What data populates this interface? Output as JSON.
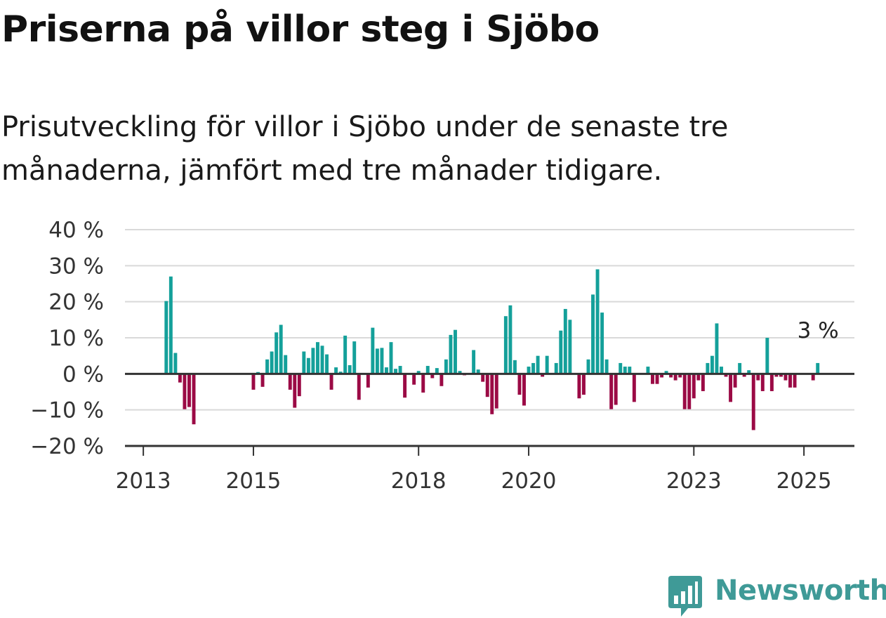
{
  "title": "Priserna på villor steg i Sjöbo",
  "subtitle": "Prisutveckling för villor i Sjöbo under de senaste tre månaderna, jämfört med tre månader tidigare.",
  "brand": {
    "name": "Newsworthy",
    "color": "#3f9a97",
    "logo_icon": "bar-chart-badge-icon"
  },
  "colors": {
    "positive": "#14a09a",
    "negative": "#9b0a45",
    "grid": "#d9d9d9",
    "axis": "#333333"
  },
  "chart_data": {
    "type": "bar",
    "unit": "%",
    "ylim": [
      -20,
      40
    ],
    "yticks": [
      40,
      30,
      20,
      10,
      0,
      -10,
      -20
    ],
    "ytick_labels": [
      "40 %",
      "30 %",
      "20 %",
      "10 %",
      "0 %",
      "−10 %",
      "−20 %"
    ],
    "xticks": [
      2013,
      2015,
      2018,
      2020,
      2023,
      2025
    ],
    "xtick_labels": [
      "2013",
      "2015",
      "2018",
      "2020",
      "2023",
      "2025"
    ],
    "x_start": "2012-09",
    "x_end": "2025-12",
    "grid": true,
    "annotation": {
      "label": "3 %",
      "x": "2025-04",
      "y": 3
    },
    "series": [
      {
        "values": [
          {
            "x": "2013-06",
            "y": 20.2
          },
          {
            "x": "2013-07",
            "y": 27.0
          },
          {
            "x": "2013-08",
            "y": 5.8
          },
          {
            "x": "2013-09",
            "y": -2.4
          },
          {
            "x": "2013-10",
            "y": -9.8
          },
          {
            "x": "2013-11",
            "y": -9.2
          },
          {
            "x": "2013-12",
            "y": -14.0
          },
          {
            "x": "2015-01",
            "y": -4.4
          },
          {
            "x": "2015-02",
            "y": 0.5
          },
          {
            "x": "2015-03",
            "y": -3.6
          },
          {
            "x": "2015-04",
            "y": 4.0
          },
          {
            "x": "2015-05",
            "y": 6.2
          },
          {
            "x": "2015-06",
            "y": 11.5
          },
          {
            "x": "2015-07",
            "y": 13.6
          },
          {
            "x": "2015-08",
            "y": 5.2
          },
          {
            "x": "2015-09",
            "y": -4.4
          },
          {
            "x": "2015-10",
            "y": -9.4
          },
          {
            "x": "2015-11",
            "y": -6.2
          },
          {
            "x": "2015-12",
            "y": 6.2
          },
          {
            "x": "2016-01",
            "y": 4.4
          },
          {
            "x": "2016-02",
            "y": 7.2
          },
          {
            "x": "2016-03",
            "y": 8.8
          },
          {
            "x": "2016-04",
            "y": 7.8
          },
          {
            "x": "2016-05",
            "y": 5.4
          },
          {
            "x": "2016-06",
            "y": -4.4
          },
          {
            "x": "2016-07",
            "y": 1.8
          },
          {
            "x": "2016-08",
            "y": 0.6
          },
          {
            "x": "2016-09",
            "y": 10.6
          },
          {
            "x": "2016-10",
            "y": 2.4
          },
          {
            "x": "2016-11",
            "y": 9.0
          },
          {
            "x": "2016-12",
            "y": -7.2
          },
          {
            "x": "2017-02",
            "y": -3.8
          },
          {
            "x": "2017-03",
            "y": 12.8
          },
          {
            "x": "2017-04",
            "y": 7.0
          },
          {
            "x": "2017-05",
            "y": 7.2
          },
          {
            "x": "2017-06",
            "y": 1.8
          },
          {
            "x": "2017-07",
            "y": 8.8
          },
          {
            "x": "2017-08",
            "y": 1.4
          },
          {
            "x": "2017-09",
            "y": 2.2
          },
          {
            "x": "2017-10",
            "y": -6.6
          },
          {
            "x": "2017-12",
            "y": -3.0
          },
          {
            "x": "2018-01",
            "y": 0.8
          },
          {
            "x": "2018-02",
            "y": -5.2
          },
          {
            "x": "2018-03",
            "y": 2.2
          },
          {
            "x": "2018-04",
            "y": -1.2
          },
          {
            "x": "2018-05",
            "y": 1.6
          },
          {
            "x": "2018-06",
            "y": -3.4
          },
          {
            "x": "2018-07",
            "y": 4.0
          },
          {
            "x": "2018-08",
            "y": 10.8
          },
          {
            "x": "2018-09",
            "y": 12.2
          },
          {
            "x": "2018-10",
            "y": 0.8
          },
          {
            "x": "2018-11",
            "y": -0.4
          },
          {
            "x": "2019-01",
            "y": 6.6
          },
          {
            "x": "2019-02",
            "y": 1.2
          },
          {
            "x": "2019-03",
            "y": -2.2
          },
          {
            "x": "2019-04",
            "y": -6.4
          },
          {
            "x": "2019-05",
            "y": -11.2
          },
          {
            "x": "2019-06",
            "y": -9.6
          },
          {
            "x": "2019-08",
            "y": 16.0
          },
          {
            "x": "2019-09",
            "y": 19.0
          },
          {
            "x": "2019-10",
            "y": 3.8
          },
          {
            "x": "2019-11",
            "y": -5.8
          },
          {
            "x": "2019-12",
            "y": -8.8
          },
          {
            "x": "2020-01",
            "y": 2.0
          },
          {
            "x": "2020-02",
            "y": 3.0
          },
          {
            "x": "2020-03",
            "y": 5.0
          },
          {
            "x": "2020-04",
            "y": -0.8
          },
          {
            "x": "2020-05",
            "y": 5.0
          },
          {
            "x": "2020-07",
            "y": 3.0
          },
          {
            "x": "2020-08",
            "y": 12.0
          },
          {
            "x": "2020-09",
            "y": 18.0
          },
          {
            "x": "2020-10",
            "y": 15.0
          },
          {
            "x": "2020-12",
            "y": -6.8
          },
          {
            "x": "2021-01",
            "y": -5.8
          },
          {
            "x": "2021-02",
            "y": 4.0
          },
          {
            "x": "2021-03",
            "y": 22.0
          },
          {
            "x": "2021-04",
            "y": 29.0
          },
          {
            "x": "2021-05",
            "y": 17.0
          },
          {
            "x": "2021-06",
            "y": 4.0
          },
          {
            "x": "2021-07",
            "y": -9.8
          },
          {
            "x": "2021-08",
            "y": -8.6
          },
          {
            "x": "2021-09",
            "y": 3.0
          },
          {
            "x": "2021-10",
            "y": 2.0
          },
          {
            "x": "2021-11",
            "y": 2.0
          },
          {
            "x": "2021-12",
            "y": -7.8
          },
          {
            "x": "2022-03",
            "y": 2.0
          },
          {
            "x": "2022-04",
            "y": -2.8
          },
          {
            "x": "2022-05",
            "y": -2.8
          },
          {
            "x": "2022-06",
            "y": -1.0
          },
          {
            "x": "2022-07",
            "y": 0.8
          },
          {
            "x": "2022-08",
            "y": -1.0
          },
          {
            "x": "2022-09",
            "y": -1.8
          },
          {
            "x": "2022-10",
            "y": -1.0
          },
          {
            "x": "2022-11",
            "y": -9.8
          },
          {
            "x": "2022-12",
            "y": -9.8
          },
          {
            "x": "2023-01",
            "y": -6.8
          },
          {
            "x": "2023-02",
            "y": -1.8
          },
          {
            "x": "2023-03",
            "y": -4.8
          },
          {
            "x": "2023-04",
            "y": 3.0
          },
          {
            "x": "2023-05",
            "y": 5.0
          },
          {
            "x": "2023-06",
            "y": 14.0
          },
          {
            "x": "2023-07",
            "y": 2.0
          },
          {
            "x": "2023-08",
            "y": -0.8
          },
          {
            "x": "2023-09",
            "y": -7.8
          },
          {
            "x": "2023-10",
            "y": -3.8
          },
          {
            "x": "2023-11",
            "y": 3.0
          },
          {
            "x": "2023-12",
            "y": -0.8
          },
          {
            "x": "2024-01",
            "y": 1.0
          },
          {
            "x": "2024-02",
            "y": -15.6
          },
          {
            "x": "2024-03",
            "y": -1.8
          },
          {
            "x": "2024-04",
            "y": -4.8
          },
          {
            "x": "2024-05",
            "y": 10.0
          },
          {
            "x": "2024-06",
            "y": -4.8
          },
          {
            "x": "2024-07",
            "y": -0.8
          },
          {
            "x": "2024-08",
            "y": -0.8
          },
          {
            "x": "2024-09",
            "y": -1.8
          },
          {
            "x": "2024-10",
            "y": -3.8
          },
          {
            "x": "2024-11",
            "y": -3.8
          },
          {
            "x": "2025-03",
            "y": -1.8
          },
          {
            "x": "2025-04",
            "y": 3.0
          }
        ]
      }
    ]
  }
}
